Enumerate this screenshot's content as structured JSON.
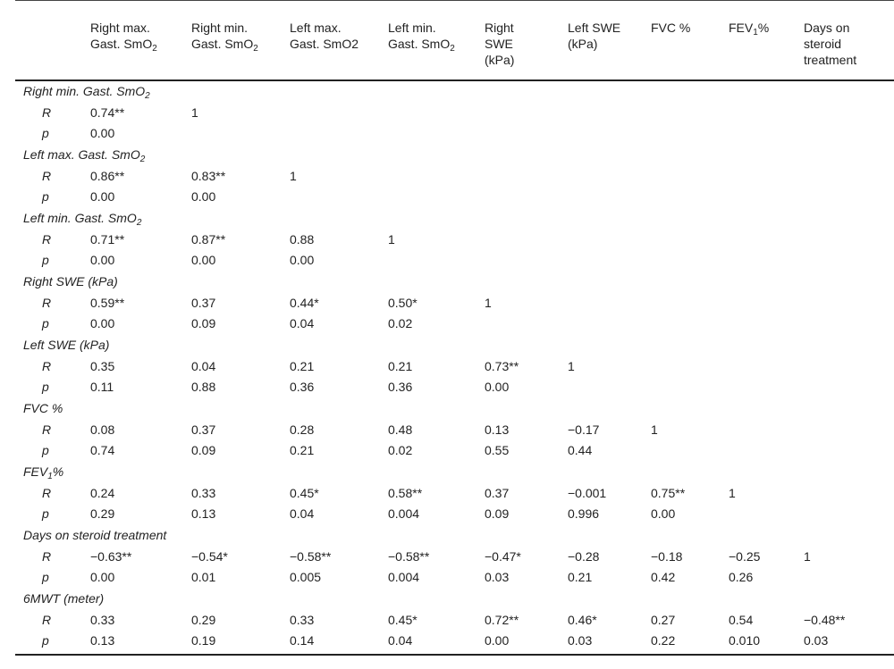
{
  "header": {
    "columns": [
      [
        "Right max.",
        "Gast. SmO",
        "2"
      ],
      [
        "Right min.",
        "Gast. SmO",
        "2"
      ],
      [
        "Left max.",
        "Gast. SmO2",
        ""
      ],
      [
        "Left min.",
        "Gast. SmO",
        "2"
      ],
      [
        "Right",
        "SWE",
        "(kPa)"
      ],
      [
        "Left SWE",
        "(kPa)",
        ""
      ],
      [
        "FVC %",
        "",
        ""
      ],
      [
        "FEV",
        "1",
        "%"
      ],
      [
        "Days on",
        "steroid",
        "treatment"
      ]
    ]
  },
  "groups": [
    {
      "label": "Right min. Gast. SmO",
      "sub": "2",
      "R": [
        "0.74**",
        "1"
      ],
      "p": [
        "0.00"
      ]
    },
    {
      "label": "Left max. Gast. SmO",
      "sub": "2",
      "R": [
        "0.86**",
        "0.83**",
        "1"
      ],
      "p": [
        "0.00",
        "0.00"
      ]
    },
    {
      "label": "Left min. Gast. SmO",
      "sub": "2",
      "R": [
        "0.71**",
        "0.87**",
        "0.88",
        "1"
      ],
      "p": [
        "0.00",
        "0.00",
        "0.00"
      ]
    },
    {
      "label": "Right SWE (kPa)",
      "sub": "",
      "R": [
        "0.59**",
        "0.37",
        "0.44*",
        "0.50*",
        "1"
      ],
      "p": [
        "0.00",
        "0.09",
        "0.04",
        "0.02"
      ]
    },
    {
      "label": "Left SWE (kPa)",
      "sub": "",
      "R": [
        "0.35",
        "0.04",
        "0.21",
        "0.21",
        "0.73**",
        "1"
      ],
      "p": [
        "0.11",
        "0.88",
        "0.36",
        "0.36",
        "0.00"
      ]
    },
    {
      "label": "FVC %",
      "sub": "",
      "R": [
        "0.08",
        "0.37",
        "0.28",
        "0.48",
        "0.13",
        "−0.17",
        "1"
      ],
      "p": [
        "0.74",
        "0.09",
        "0.21",
        "0.02",
        "0.55",
        "0.44"
      ]
    },
    {
      "label": "FEV",
      "sub": "1",
      "suffix": "%",
      "R": [
        "0.24",
        "0.33",
        "0.45*",
        "0.58**",
        "0.37",
        "−0.001",
        "0.75**",
        "1"
      ],
      "p": [
        "0.29",
        "0.13",
        "0.04",
        "0.004",
        "0.09",
        "0.996",
        "0.00"
      ]
    },
    {
      "label": "Days on steroid treatment",
      "sub": "",
      "R": [
        "−0.63**",
        "−0.54*",
        "−0.58**",
        "−0.58**",
        "−0.47*",
        "−0.28",
        "−0.18",
        "−0.25",
        "1"
      ],
      "p": [
        "0.00",
        "0.01",
        "0.005",
        "0.004",
        "0.03",
        "0.21",
        "0.42",
        "0.26"
      ]
    },
    {
      "label": "6MWT (meter)",
      "sub": "",
      "R": [
        "0.33",
        "0.29",
        "0.33",
        "0.45*",
        "0.72**",
        "0.46*",
        "0.27",
        "0.54",
        "−0.48**"
      ],
      "p": [
        "0.13",
        "0.19",
        "0.14",
        "0.04",
        "0.00",
        "0.03",
        "0.22",
        "0.010",
        "0.03"
      ]
    }
  ],
  "stat_labels": {
    "r": "R",
    "p": "p"
  }
}
